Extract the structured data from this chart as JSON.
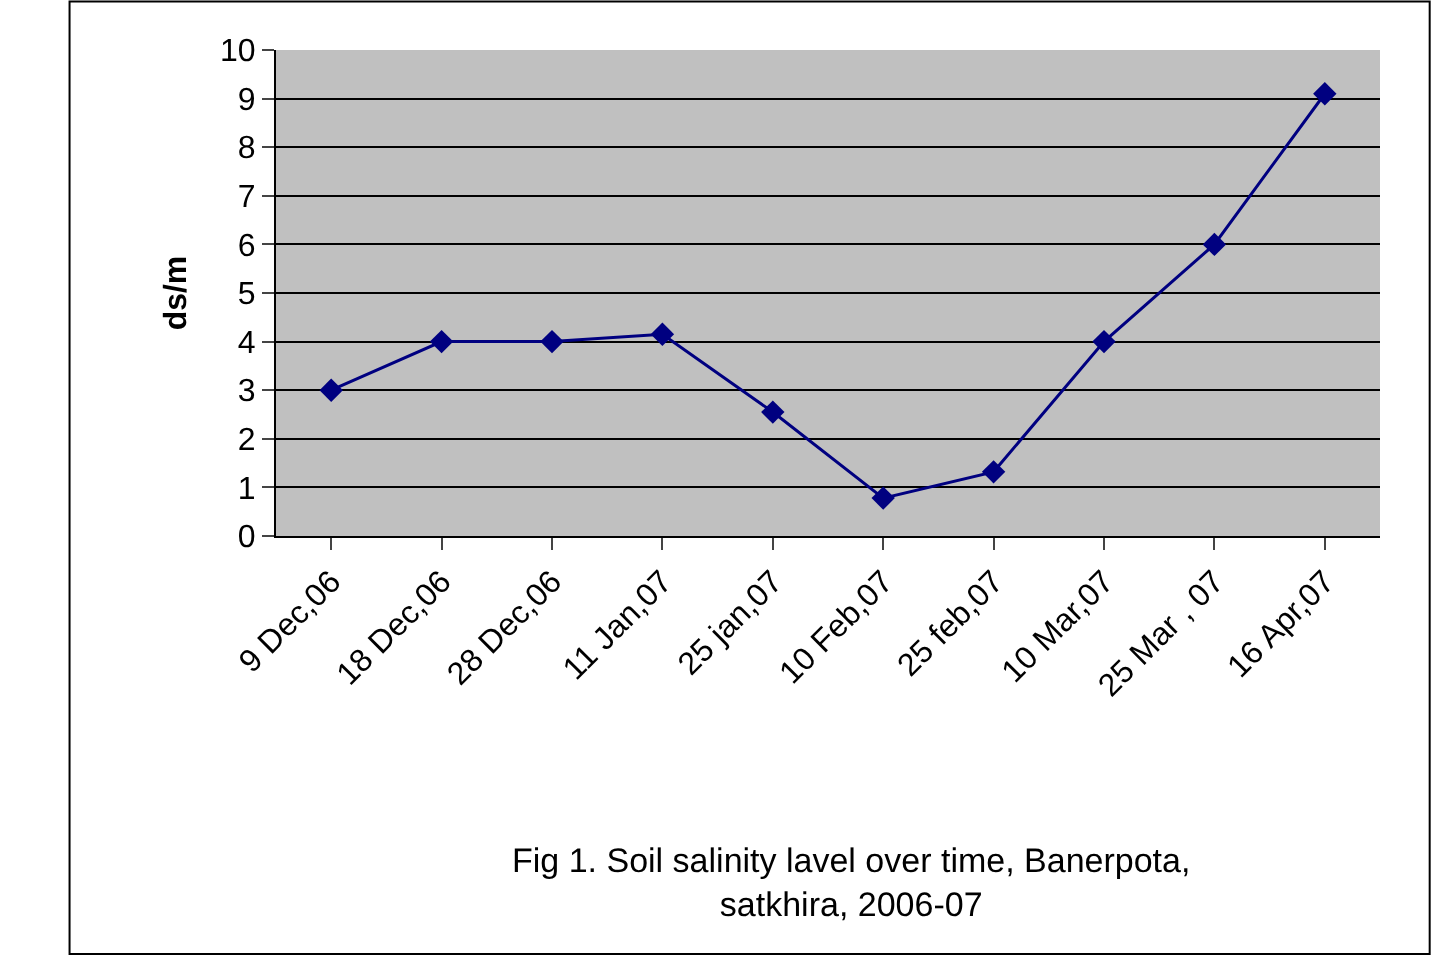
{
  "chart_data": {
    "type": "line",
    "title": "Fig 1. Soil salinity lavel over time, Banerpota,\nsatkhira, 2006-07",
    "ylabel": "ds/m",
    "categories": [
      "9 Dec,06",
      "18 Dec,06",
      "28 Dec,06",
      "11 Jan,07",
      "25 jan,07",
      "10 Feb,07",
      "25 feb,07",
      "10 Mar,07",
      "25 Mar , 07",
      "16 Apr,07"
    ],
    "series": [
      {
        "color": "#000080",
        "values": [
          3,
          4,
          4,
          4.15,
          2.55,
          0.78,
          1.32,
          4,
          6,
          9.1
        ]
      }
    ],
    "ylim": [
      0,
      10
    ],
    "yticks": [
      0,
      1,
      2,
      3,
      4,
      5,
      6,
      7,
      8,
      9,
      10
    ],
    "grid": "y",
    "marker": "diamond",
    "line_style": "solid",
    "legend": false
  }
}
